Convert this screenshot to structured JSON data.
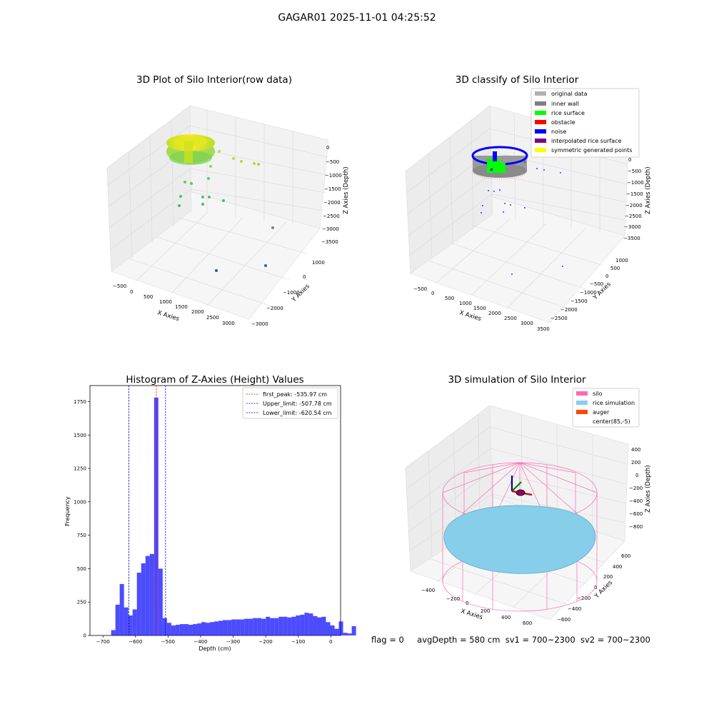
{
  "figure": {
    "suptitle": "GAGAR01 2025-11-01 04:25:52",
    "footer": {
      "flag": "flag = 0",
      "avg": "avgDepth = 580 cm",
      "sv1": "sv1 = 700~2300",
      "sv2": "sv2 = 700~2300"
    }
  },
  "chart_data": [
    {
      "type": "scatter",
      "projection": "3d",
      "title": "3D Plot of Silo Interior(row data)",
      "xlabel": "X Axies",
      "ylabel": "Y Axies",
      "zlabel": "Z Axies (Depth)",
      "x_ticks": [
        "−500",
        "0",
        "500",
        "1000",
        "1500",
        "2000",
        "2500",
        "3000"
      ],
      "y_ticks": [
        "1000",
        "0",
        "−1000",
        "−2000",
        "−3000"
      ],
      "z_ticks": [
        "0",
        "−500",
        "−1000",
        "−1500",
        "−2000",
        "−2500",
        "−3000",
        "−3500"
      ],
      "grid": true,
      "colormap": "viridis",
      "description_points": [
        {
          "x": 3100,
          "y": -2600,
          "z": -3100
        },
        {
          "x": 2800,
          "y": -900,
          "z": -3300
        },
        {
          "x": 2600,
          "y": -1800,
          "z": -3400
        }
      ]
    },
    {
      "type": "scatter",
      "projection": "3d",
      "title": "3D classify of Silo Interior",
      "xlabel": "X Axies",
      "ylabel": "Y Axies",
      "zlabel": "Z Axies (Depth)",
      "x_ticks": [
        "−500",
        "0",
        "500",
        "1000",
        "1500",
        "2000",
        "2500",
        "3000",
        "3500"
      ],
      "y_ticks": [
        "1000",
        "500",
        "0",
        "−500",
        "−1000",
        "−1500",
        "−2000",
        "−2500"
      ],
      "z_ticks": [
        "0",
        "−500",
        "−1000",
        "−1500",
        "−2000",
        "−2500",
        "−3000",
        "−3500"
      ],
      "grid": true,
      "legend_position": "top-right",
      "legend": [
        {
          "label": "original data",
          "color": "#b0b0b0"
        },
        {
          "label": "inner wall",
          "color": "#808080"
        },
        {
          "label": "rice surface",
          "color": "#00ff00"
        },
        {
          "label": "obstacle",
          "color": "#ff0000"
        },
        {
          "label": "noise",
          "color": "#0000ff"
        },
        {
          "label": "interpolated rice surface",
          "color": "#800080"
        },
        {
          "label": "symmetric generated points",
          "color": "#ffff00"
        }
      ]
    },
    {
      "type": "bar",
      "title": "Histogram of Z-Axies (Height) Values",
      "xlabel": "Depth (cm)",
      "ylabel": "Frequency",
      "xlim": [
        -740,
        30
      ],
      "ylim": [
        0,
        1870
      ],
      "x_ticks": [
        -700,
        -600,
        -500,
        -400,
        -300,
        -200,
        -100,
        0
      ],
      "y_ticks": [
        0,
        250,
        500,
        750,
        1000,
        1250,
        1500,
        1750
      ],
      "bar_color": "#0000ff",
      "bin_start": -675,
      "bin_width": 13.2,
      "values": [
        40,
        230,
        385,
        210,
        150,
        195,
        470,
        540,
        595,
        610,
        1780,
        500,
        130,
        95,
        75,
        80,
        85,
        85,
        80,
        85,
        90,
        100,
        95,
        100,
        105,
        110,
        115,
        115,
        120,
        120,
        120,
        125,
        125,
        130,
        130,
        125,
        140,
        130,
        130,
        140,
        140,
        135,
        140,
        150,
        155,
        170,
        165,
        145,
        135,
        140,
        100,
        75,
        50,
        105,
        20,
        15,
        70,
        0
      ],
      "lines": [
        {
          "label": "first_peak: -535.97 cm",
          "x": -535.97,
          "color": "#ff0000"
        },
        {
          "label": "Upper_limit: -507.78 cm",
          "x": -507.78,
          "color": "#0000ff"
        },
        {
          "label": "Lower_limit: -620.54 cm",
          "x": -620.54,
          "color": "#00008b"
        }
      ],
      "legend_position": "top-right"
    },
    {
      "type": "surface",
      "projection": "3d",
      "title": "3D simulation of Silo Interior",
      "xlabel": "X Axies",
      "ylabel": "Y Axies",
      "zlabel": "Z Axies (Depth)",
      "x_ticks": [
        "−400",
        "−200",
        "0",
        "200",
        "400",
        "600"
      ],
      "y_ticks": [
        "600",
        "400",
        "200",
        "0",
        "−200",
        "−400",
        "−600"
      ],
      "z_ticks": [
        "400",
        "200",
        "0",
        "−200",
        "−400",
        "−600",
        "−800"
      ],
      "grid": true,
      "legend_position": "top-right",
      "legend": [
        {
          "label": "silo",
          "color": "#ff69b4"
        },
        {
          "label": "rice simulation",
          "color": "#87ceeb"
        },
        {
          "label": "auger",
          "color": "#ff4500"
        },
        {
          "label": "center(85,-5)",
          "color": ""
        }
      ]
    }
  ]
}
